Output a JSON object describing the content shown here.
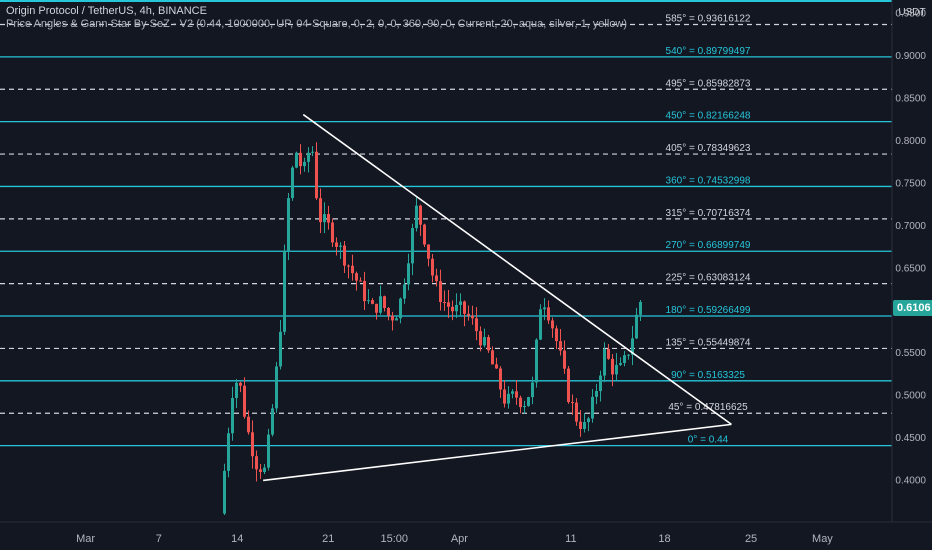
{
  "header": {
    "title": "Origin Protocol / TetherUS, 4h, BINANCE",
    "indicator": "Price Angles & Gann Star By SeZ - V2 (0.44, 1000000, UP, 04-Square, 0, 2, 0, 0, 360, 90, 0, Current, 20, aqua, silver, 1, yellow)"
  },
  "colors": {
    "background": "#131722",
    "up": "#26a69a",
    "down": "#ef5350",
    "aqua_line": "#26c6da",
    "silver_line": "#d1d4dc",
    "trendline": "#ffffff",
    "last_price_bg": "#26a69a"
  },
  "current_price_label": "0.6106",
  "chart_data": {
    "type": "candlestick",
    "symbol": "OGN/USDT",
    "interval": "4h",
    "exchange": "BINANCE",
    "y_unit": "USDT",
    "ylim": [
      0.35,
      0.965
    ],
    "y_ticks": [
      "0.9500",
      "0.9000",
      "0.8500",
      "0.8000",
      "0.7500",
      "0.7000",
      "0.6500",
      "0.6000",
      "0.5500",
      "0.5000",
      "0.4500",
      "0.4000"
    ],
    "x_ticks": [
      "Mar",
      "7",
      "14",
      "21",
      "15:00",
      "Apr",
      "11",
      "18",
      "25",
      "May"
    ],
    "gann_levels": [
      {
        "label": "585° = 0.93616122",
        "value": 0.93616122,
        "style": "dashed"
      },
      {
        "label": "540° = 0.89799497",
        "value": 0.89799497,
        "style": "solid"
      },
      {
        "label": "495° = 0.85982873",
        "value": 0.85982873,
        "style": "dashed"
      },
      {
        "label": "450° = 0.82166248",
        "value": 0.82166248,
        "style": "solid"
      },
      {
        "label": "405° = 0.78349623",
        "value": 0.78349623,
        "style": "dashed"
      },
      {
        "label": "360° = 0.74532998",
        "value": 0.74532998,
        "style": "solid"
      },
      {
        "label": "315° = 0.70716374",
        "value": 0.70716374,
        "style": "dashed"
      },
      {
        "label": "270° = 0.66899749",
        "value": 0.66899749,
        "style": "solid"
      },
      {
        "label": "225° = 0.63083124",
        "value": 0.63083124,
        "style": "dashed"
      },
      {
        "label": "180° = 0.59266499",
        "value": 0.59266499,
        "style": "solid"
      },
      {
        "label": "135° = 0.55449874",
        "value": 0.55449874,
        "style": "dashed"
      },
      {
        "label": "90° = 0.5163325",
        "value": 0.5163325,
        "style": "solid"
      },
      {
        "label": "45° = 0.47816625",
        "value": 0.47816625,
        "style": "dashed"
      },
      {
        "label": "0° = 0.44",
        "value": 0.44,
        "style": "solid"
      }
    ],
    "triangle": {
      "upper_line": {
        "from": [
          0.34,
          0.83
        ],
        "to": [
          0.82,
          0.465
        ]
      },
      "lower_line": {
        "from": [
          0.295,
          0.399
        ],
        "to": [
          0.82,
          0.465
        ]
      }
    },
    "price_path": [
      [
        0.25,
        0.36
      ],
      [
        0.258,
        0.45
      ],
      [
        0.265,
        0.52
      ],
      [
        0.272,
        0.51
      ],
      [
        0.28,
        0.46
      ],
      [
        0.29,
        0.42
      ],
      [
        0.3,
        0.41
      ],
      [
        0.308,
        0.48
      ],
      [
        0.316,
        0.56
      ],
      [
        0.325,
        0.72
      ],
      [
        0.334,
        0.79
      ],
      [
        0.343,
        0.76
      ],
      [
        0.352,
        0.8
      ],
      [
        0.36,
        0.71
      ],
      [
        0.37,
        0.7
      ],
      [
        0.38,
        0.68
      ],
      [
        0.39,
        0.66
      ],
      [
        0.4,
        0.64
      ],
      [
        0.41,
        0.62
      ],
      [
        0.42,
        0.6
      ],
      [
        0.43,
        0.61
      ],
      [
        0.44,
        0.59
      ],
      [
        0.45,
        0.6
      ],
      [
        0.46,
        0.66
      ],
      [
        0.47,
        0.72
      ],
      [
        0.48,
        0.68
      ],
      [
        0.49,
        0.63
      ],
      [
        0.5,
        0.61
      ],
      [
        0.51,
        0.6
      ],
      [
        0.52,
        0.6
      ],
      [
        0.53,
        0.59
      ],
      [
        0.54,
        0.57
      ],
      [
        0.55,
        0.55
      ],
      [
        0.56,
        0.52
      ],
      [
        0.57,
        0.49
      ],
      [
        0.58,
        0.5
      ],
      [
        0.59,
        0.49
      ],
      [
        0.6,
        0.51
      ],
      [
        0.61,
        0.62
      ],
      [
        0.62,
        0.59
      ],
      [
        0.63,
        0.55
      ],
      [
        0.64,
        0.5
      ],
      [
        0.65,
        0.47
      ],
      [
        0.66,
        0.46
      ],
      [
        0.67,
        0.5
      ],
      [
        0.68,
        0.55
      ],
      [
        0.69,
        0.53
      ],
      [
        0.7,
        0.53
      ],
      [
        0.71,
        0.56
      ],
      [
        0.72,
        0.61
      ]
    ]
  }
}
